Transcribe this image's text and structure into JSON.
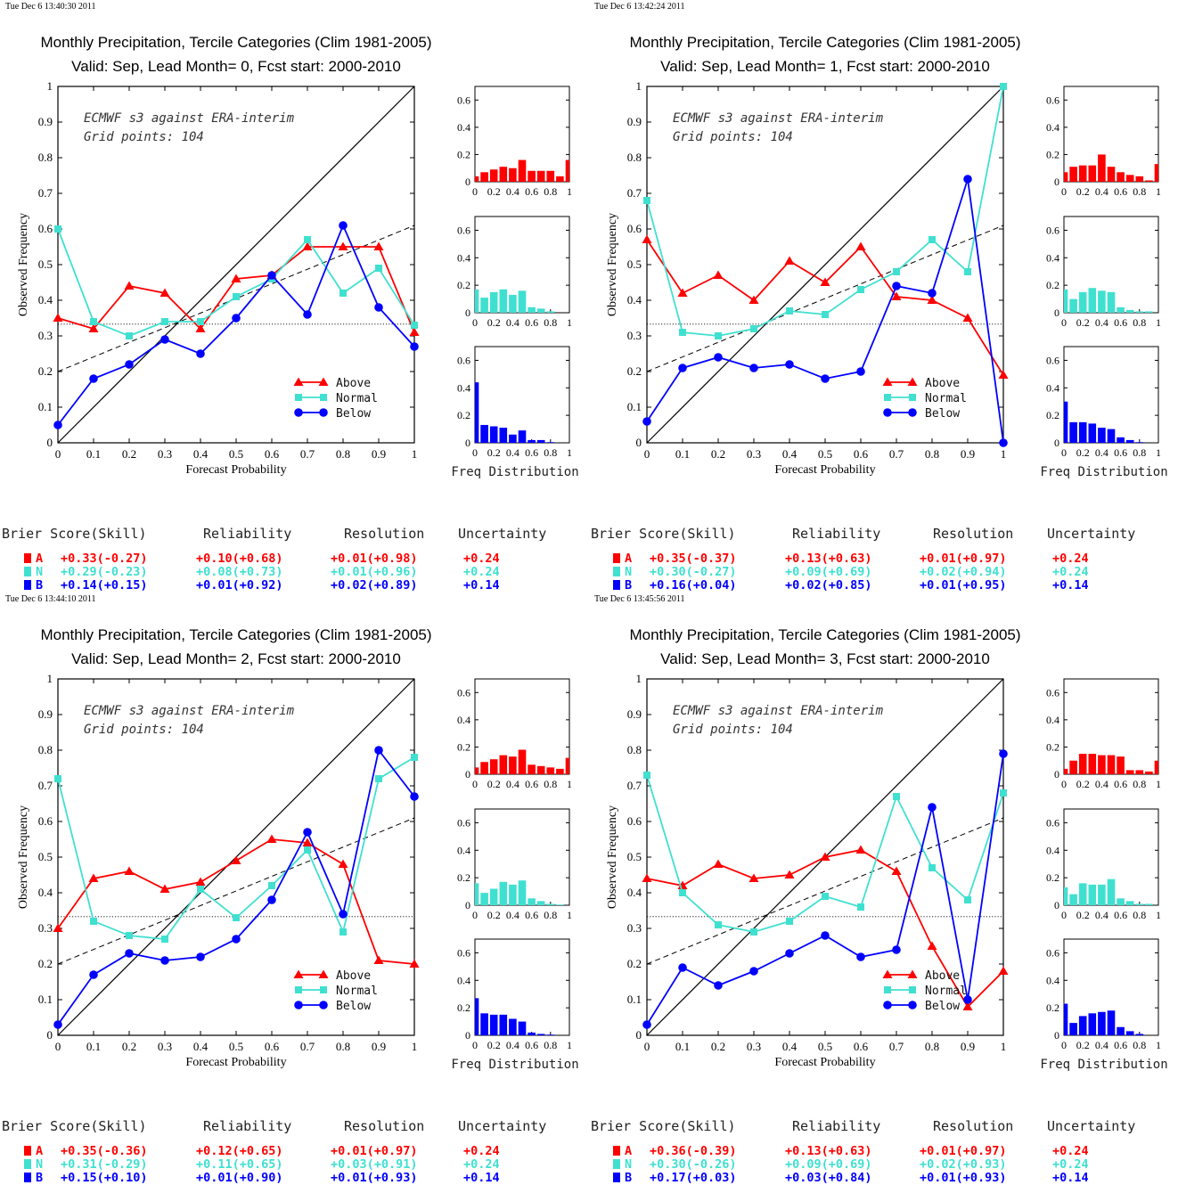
{
  "colors": {
    "above": "#ff0000",
    "normal": "#40e0d0",
    "below": "#0000ff",
    "axes": "#000000"
  },
  "common": {
    "title1": "Monthly Precipitation, Tercile Categories (Clim 1981-2005)",
    "ylabel": "Observed Frequency",
    "xlabel": "Forecast Probability",
    "annot1": "ECMWF s3 against ERA-interim",
    "annot2": "Grid points:  104",
    "legend": [
      "Above",
      "Normal",
      "Below"
    ],
    "freq_label": "Freq Distribution",
    "score_headers": [
      "Brier Score(Skill)",
      "Reliability",
      "Resolution",
      "Uncertainty"
    ],
    "score_letters": [
      "A",
      "N",
      "B"
    ],
    "x_ticks": [
      "0",
      "0.1",
      "0.2",
      "0.3",
      "0.4",
      "0.5",
      "0.6",
      "0.7",
      "0.8",
      "0.9",
      "1"
    ],
    "y_ticks": [
      "0",
      "0.1",
      "0.2",
      "0.3",
      "0.4",
      "0.5",
      "0.6",
      "0.7",
      "0.8",
      "0.9",
      "1"
    ],
    "hist_y_ticks": [
      "0",
      "0.2",
      "0.4",
      "0.6"
    ],
    "hist_x_ticks": [
      "0",
      "0.2",
      "0.4",
      "0.6",
      "0.8",
      "1"
    ]
  },
  "chart_data": [
    {
      "type": "line",
      "timestamp": "Tue Dec  6 13:40:30 2011",
      "title2": "Valid: Sep, Lead Month= 0, Fcst start: 2000-2010",
      "x": [
        0,
        0.1,
        0.2,
        0.3,
        0.4,
        0.5,
        0.6,
        0.7,
        0.8,
        0.9,
        1
      ],
      "xlim": [
        0,
        1
      ],
      "ylim": [
        0,
        1
      ],
      "climatology": 0.333,
      "regression": [
        0.2,
        0.61
      ],
      "series": [
        {
          "name": "Above",
          "values": [
            0.35,
            0.32,
            0.44,
            0.42,
            0.32,
            0.46,
            0.47,
            0.55,
            0.55,
            0.55,
            0.31
          ]
        },
        {
          "name": "Normal",
          "values": [
            0.6,
            0.34,
            0.3,
            0.34,
            0.34,
            0.41,
            0.46,
            0.57,
            0.42,
            0.49,
            0.33
          ]
        },
        {
          "name": "Below",
          "values": [
            0.05,
            0.18,
            0.22,
            0.29,
            0.25,
            0.35,
            0.47,
            0.36,
            0.61,
            0.38,
            0.27
          ]
        }
      ],
      "histograms": {
        "ylim": [
          0,
          0.7
        ],
        "above": [
          0.04,
          0.07,
          0.09,
          0.11,
          0.1,
          0.16,
          0.08,
          0.08,
          0.08,
          0.04,
          0.16
        ],
        "normal": [
          0.17,
          0.11,
          0.15,
          0.17,
          0.13,
          0.16,
          0.04,
          0.03,
          0.01,
          0,
          0
        ],
        "below": [
          0.44,
          0.13,
          0.12,
          0.11,
          0.06,
          0.09,
          0.02,
          0.02,
          0.005,
          0,
          0
        ]
      },
      "scores": [
        [
          "+0.33(-0.27)",
          "+0.10(+0.68)",
          "+0.01(+0.98)",
          "+0.24"
        ],
        [
          "+0.29(-0.23)",
          "+0.08(+0.73)",
          "+0.01(+0.96)",
          "+0.24"
        ],
        [
          "+0.14(+0.15)",
          "+0.01(+0.92)",
          "+0.02(+0.89)",
          "+0.14"
        ]
      ]
    },
    {
      "type": "line",
      "timestamp": "Tue Dec  6 13:42:24 2011",
      "title2": "Valid: Sep, Lead Month= 1, Fcst start: 2000-2010",
      "x": [
        0,
        0.1,
        0.2,
        0.3,
        0.4,
        0.5,
        0.6,
        0.7,
        0.8,
        0.9,
        1
      ],
      "xlim": [
        0,
        1
      ],
      "ylim": [
        0,
        1
      ],
      "climatology": 0.333,
      "regression": [
        0.2,
        0.61
      ],
      "series": [
        {
          "name": "Above",
          "values": [
            0.57,
            0.42,
            0.47,
            0.4,
            0.51,
            0.45,
            0.55,
            0.41,
            0.4,
            0.35,
            0.19
          ]
        },
        {
          "name": "Normal",
          "values": [
            0.68,
            0.31,
            0.3,
            0.32,
            0.37,
            0.36,
            0.43,
            0.48,
            0.57,
            0.48,
            1.0
          ]
        },
        {
          "name": "Below",
          "values": [
            0.06,
            0.21,
            0.24,
            0.21,
            0.22,
            0.18,
            0.2,
            0.44,
            0.42,
            0.74,
            0.0
          ]
        }
      ],
      "histograms": {
        "ylim": [
          0,
          0.7
        ],
        "above": [
          0.07,
          0.11,
          0.12,
          0.12,
          0.2,
          0.11,
          0.07,
          0.05,
          0.04,
          0.01,
          0.13
        ],
        "normal": [
          0.17,
          0.1,
          0.15,
          0.18,
          0.16,
          0.15,
          0.04,
          0.02,
          0.01,
          0.01,
          0
        ],
        "below": [
          0.3,
          0.15,
          0.15,
          0.14,
          0.11,
          0.1,
          0.04,
          0.02,
          0.005,
          0,
          0
        ]
      },
      "scores": [
        [
          "+0.35(-0.37)",
          "+0.13(+0.63)",
          "+0.01(+0.97)",
          "+0.24"
        ],
        [
          "+0.30(-0.27)",
          "+0.09(+0.69)",
          "+0.02(+0.94)",
          "+0.24"
        ],
        [
          "+0.16(+0.04)",
          "+0.02(+0.85)",
          "+0.01(+0.95)",
          "+0.14"
        ]
      ]
    },
    {
      "type": "line",
      "timestamp": "Tue Dec  6 13:44:10 2011",
      "title2": "Valid: Sep, Lead Month= 2, Fcst start: 2000-2010",
      "x": [
        0,
        0.1,
        0.2,
        0.3,
        0.4,
        0.5,
        0.6,
        0.7,
        0.8,
        0.9,
        1
      ],
      "xlim": [
        0,
        1
      ],
      "ylim": [
        0,
        1
      ],
      "climatology": 0.333,
      "regression": [
        0.2,
        0.61
      ],
      "series": [
        {
          "name": "Above",
          "values": [
            0.3,
            0.44,
            0.46,
            0.41,
            0.43,
            0.49,
            0.55,
            0.54,
            0.48,
            0.21,
            0.2
          ]
        },
        {
          "name": "Normal",
          "values": [
            0.72,
            0.32,
            0.28,
            0.27,
            0.41,
            0.33,
            0.42,
            0.52,
            0.29,
            0.72,
            0.78
          ]
        },
        {
          "name": "Below",
          "values": [
            0.03,
            0.17,
            0.23,
            0.21,
            0.22,
            0.27,
            0.38,
            0.57,
            0.34,
            0.8,
            0.67
          ]
        }
      ],
      "histograms": {
        "ylim": [
          0,
          0.7
        ],
        "above": [
          0.05,
          0.09,
          0.11,
          0.14,
          0.13,
          0.18,
          0.07,
          0.06,
          0.05,
          0.04,
          0.12
        ],
        "normal": [
          0.16,
          0.09,
          0.12,
          0.17,
          0.15,
          0.18,
          0.05,
          0.03,
          0.01,
          0.005,
          0
        ],
        "below": [
          0.27,
          0.16,
          0.15,
          0.15,
          0.12,
          0.1,
          0.02,
          0.01,
          0.005,
          0,
          0
        ]
      },
      "scores": [
        [
          "+0.35(-0.36)",
          "+0.12(+0.65)",
          "+0.01(+0.97)",
          "+0.24"
        ],
        [
          "+0.31(-0.29)",
          "+0.11(+0.65)",
          "+0.03(+0.91)",
          "+0.24"
        ],
        [
          "+0.15(+0.10)",
          "+0.01(+0.90)",
          "+0.01(+0.93)",
          "+0.14"
        ]
      ]
    },
    {
      "type": "line",
      "timestamp": "Tue Dec  6 13:45:56 2011",
      "title2": "Valid: Sep, Lead Month= 3, Fcst start: 2000-2010",
      "x": [
        0,
        0.1,
        0.2,
        0.3,
        0.4,
        0.5,
        0.6,
        0.7,
        0.8,
        0.9,
        1
      ],
      "xlim": [
        0,
        1
      ],
      "ylim": [
        0,
        1
      ],
      "climatology": 0.333,
      "regression": [
        0.2,
        0.61
      ],
      "series": [
        {
          "name": "Above",
          "values": [
            0.44,
            0.42,
            0.48,
            0.44,
            0.45,
            0.5,
            0.52,
            0.46,
            0.25,
            0.08,
            0.18
          ]
        },
        {
          "name": "Normal",
          "values": [
            0.73,
            0.4,
            0.31,
            0.29,
            0.32,
            0.39,
            0.36,
            0.67,
            0.47,
            0.38,
            0.68
          ]
        },
        {
          "name": "Below",
          "values": [
            0.03,
            0.19,
            0.14,
            0.18,
            0.23,
            0.28,
            0.22,
            0.24,
            0.64,
            0.1,
            0.79
          ]
        }
      ],
      "histograms": {
        "ylim": [
          0,
          0.7
        ],
        "above": [
          0.04,
          0.1,
          0.15,
          0.15,
          0.14,
          0.14,
          0.13,
          0.03,
          0.03,
          0.02,
          0.1
        ],
        "normal": [
          0.13,
          0.08,
          0.16,
          0.15,
          0.15,
          0.19,
          0.05,
          0.03,
          0.01,
          0.01,
          0
        ],
        "below": [
          0.23,
          0.09,
          0.14,
          0.16,
          0.17,
          0.18,
          0.06,
          0.03,
          0.01,
          0,
          0
        ]
      },
      "scores": [
        [
          "+0.36(-0.39)",
          "+0.13(+0.63)",
          "+0.01(+0.97)",
          "+0.24"
        ],
        [
          "+0.30(-0.26)",
          "+0.09(+0.69)",
          "+0.02(+0.93)",
          "+0.24"
        ],
        [
          "+0.17(+0.03)",
          "+0.03(+0.84)",
          "+0.01(+0.93)",
          "+0.14"
        ]
      ]
    }
  ]
}
